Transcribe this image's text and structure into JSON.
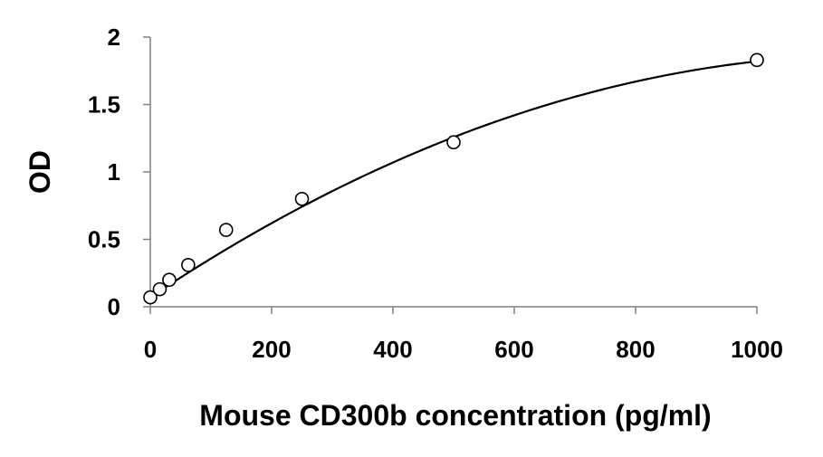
{
  "chart_data": {
    "type": "scatter",
    "title": "",
    "xlabel": "Mouse CD300b concentration (pg/ml)",
    "ylabel": "OD",
    "xlim": [
      0,
      1000
    ],
    "ylim": [
      0,
      2
    ],
    "x_ticks": [
      "0",
      "200",
      "400",
      "600",
      "800",
      "1000"
    ],
    "y_ticks": [
      "0",
      "0.5",
      "1",
      "1.5",
      "2"
    ],
    "grid": false,
    "legend": "none",
    "series": [
      {
        "marker": "open-circle",
        "points": [
          {
            "x": 0,
            "y": 0.07
          },
          {
            "x": 15.6,
            "y": 0.13
          },
          {
            "x": 31.25,
            "y": 0.2
          },
          {
            "x": 62.5,
            "y": 0.31
          },
          {
            "x": 125,
            "y": 0.57
          },
          {
            "x": 250,
            "y": 0.8
          },
          {
            "x": 500,
            "y": 1.22
          },
          {
            "x": 1000,
            "y": 1.83
          }
        ]
      }
    ],
    "trendline": {
      "type": "polynomial",
      "coefficients": [
        0.07,
        0.003,
        -1.25e-06
      ],
      "domain": [
        0,
        1000
      ],
      "color": "#000000"
    }
  }
}
